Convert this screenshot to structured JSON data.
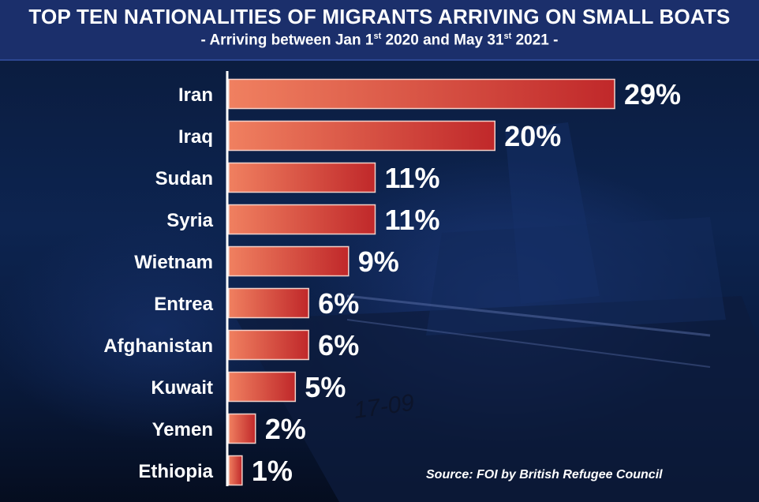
{
  "chart_data": {
    "type": "bar",
    "orientation": "horizontal",
    "title": "TOP TEN NATIONALITIES OF MIGRANTS ARRIVING ON SMALL BOATS",
    "subtitle": {
      "prefix": "- Arriving between Jan 1",
      "sup1": "st",
      "middle": " 2020 and May 31",
      "sup2": "st",
      "suffix": " 2021 -"
    },
    "categories": [
      "Iran",
      "Iraq",
      "Sudan",
      "Syria",
      "Wietnam",
      "Entrea",
      "Afghanistan",
      "Kuwait",
      "Yemen",
      "Ethiopia"
    ],
    "values": [
      29,
      20,
      11,
      11,
      9,
      6,
      6,
      5,
      2,
      1
    ],
    "value_labels": [
      "29%",
      "20%",
      "11%",
      "11%",
      "9%",
      "6%",
      "6%",
      "5%",
      "2%",
      "1%"
    ],
    "unit": "%",
    "xlim": [
      0,
      29
    ],
    "grid": false,
    "colors": {
      "bar_light": "#f08060",
      "bar_dark": "#c0282a",
      "bar_border": "#f3d0c8",
      "axis": "#ffffff",
      "text": "#ffffff",
      "header_bg": "#1b2f6b"
    },
    "source": "Source: FOI by British Refugee Council",
    "background_text": "17-09"
  }
}
